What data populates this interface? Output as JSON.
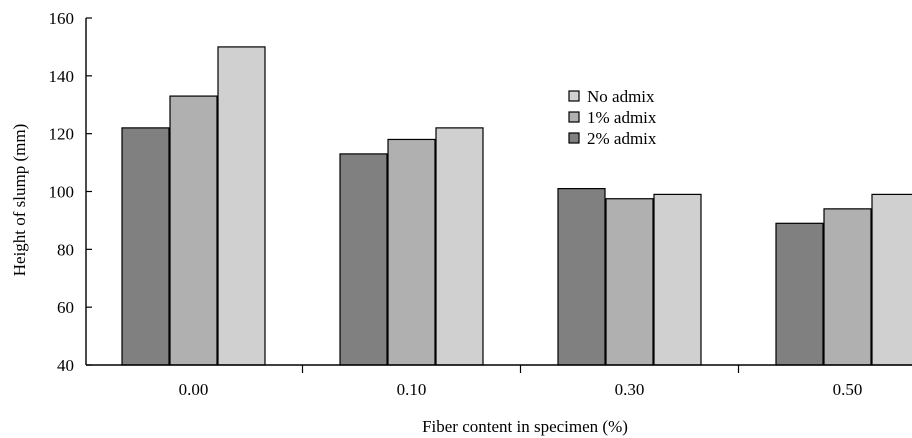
{
  "chart_data": {
    "type": "bar",
    "title": "",
    "xlabel": "Fiber content in specimen (%)",
    "ylabel": "Height of slump (mm)",
    "ylim": [
      40,
      160
    ],
    "yticks": [
      "40",
      "60",
      "80",
      "100",
      "120",
      "140",
      "160"
    ],
    "categories": [
      "0.00",
      "0.10",
      "0.30",
      "0.50"
    ],
    "series": [
      {
        "name": "2% admix",
        "color": "#808080",
        "values": [
          122,
          113,
          101,
          89
        ]
      },
      {
        "name": "1% admix",
        "color": "#b0b0b0",
        "values": [
          133,
          118,
          97.5,
          94
        ]
      },
      {
        "name": "No admix",
        "color": "#d0d0d0",
        "values": [
          150,
          122,
          99,
          99
        ]
      }
    ],
    "legend": {
      "placement": "top-center",
      "entries": [
        "No admix",
        "1% admix",
        "2% admix"
      ]
    },
    "grid": false
  }
}
